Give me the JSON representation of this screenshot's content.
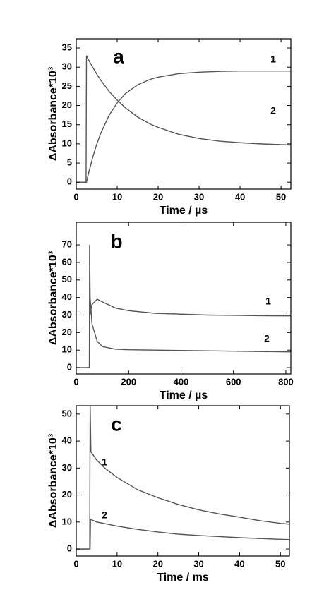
{
  "chart_data": [
    {
      "type": "line",
      "panel_label": "a",
      "xlabel": "Time / µs",
      "ylabel": "ΔAbsorbance*10³",
      "xlim": [
        0,
        52.4
      ],
      "ylim": [
        -1.8,
        37.4
      ],
      "xticks": [
        0,
        10,
        20,
        30,
        40,
        50
      ],
      "yticks": [
        0,
        5,
        10,
        15,
        20,
        25,
        30,
        35
      ],
      "series": [
        {
          "name": "1",
          "color": "#555555",
          "x": [
            0,
            1,
            2,
            2.5,
            3,
            4,
            5,
            6,
            8,
            10,
            12,
            15,
            18,
            20,
            25,
            30,
            35,
            40,
            45,
            50,
            52.4
          ],
          "values": [
            0,
            0,
            0,
            0,
            2.3,
            6.4,
            9.9,
            12.8,
            17.4,
            20.7,
            23.1,
            25.4,
            26.8,
            27.4,
            28.3,
            28.7,
            28.9,
            29,
            29,
            29,
            29
          ]
        },
        {
          "name": "2",
          "color": "#555555",
          "x": [
            0,
            1,
            2,
            2.4,
            2.5,
            3,
            4,
            5,
            6,
            8,
            10,
            12,
            15,
            18,
            20,
            25,
            30,
            35,
            40,
            45,
            50,
            52.4
          ],
          "values": [
            0,
            0,
            0,
            0,
            33,
            31.9,
            30,
            28.2,
            26.6,
            23.7,
            21.4,
            19.4,
            17,
            15.2,
            14.3,
            12.5,
            11.4,
            10.7,
            10.3,
            10,
            9.8,
            9.7
          ]
        }
      ]
    },
    {
      "type": "line",
      "panel_label": "b",
      "xlabel": "Time / µs",
      "ylabel": "ΔAbsorbance*10³",
      "xlim": [
        0,
        819
      ],
      "ylim": [
        -3.6,
        82.9
      ],
      "xticks": [
        0,
        200,
        400,
        600,
        800
      ],
      "yticks": [
        0,
        10,
        20,
        30,
        40,
        50,
        60,
        70
      ],
      "series": [
        {
          "name": "1",
          "color": "#555555",
          "x": [
            0,
            40,
            50,
            52,
            60,
            80,
            100,
            150,
            200,
            300,
            400,
            500,
            600,
            700,
            800,
            819
          ],
          "values": [
            0,
            0,
            0,
            30,
            36,
            39,
            37.5,
            34,
            32.5,
            31,
            30.5,
            30,
            29.8,
            29.6,
            29.5,
            29.5
          ]
        },
        {
          "name": "2",
          "color": "#555555",
          "x": [
            0,
            40,
            50,
            51,
            53,
            60,
            80,
            100,
            150,
            200,
            300,
            400,
            600,
            800,
            819
          ],
          "values": [
            0,
            0,
            0,
            70,
            40,
            25,
            15,
            12,
            10.5,
            10.2,
            10,
            9.8,
            9.4,
            9,
            9
          ]
        }
      ]
    },
    {
      "type": "line",
      "panel_label": "c",
      "xlabel": "Time / ms",
      "ylabel": "ΔAbsorbance*10³",
      "xlim": [
        0,
        52.2
      ],
      "ylim": [
        -2.6,
        53.1
      ],
      "xticks": [
        0,
        10,
        20,
        30,
        40,
        50
      ],
      "yticks": [
        0,
        10,
        20,
        30,
        40,
        50
      ],
      "series": [
        {
          "name": "1",
          "color": "#555555",
          "x": [
            0,
            3,
            3.3,
            3.4,
            3.6,
            5,
            7,
            10,
            15,
            20,
            25,
            30,
            35,
            40,
            45,
            50,
            52.2
          ],
          "values": [
            0,
            0,
            0,
            54,
            36,
            33,
            30,
            26.5,
            22,
            19,
            16.5,
            14.5,
            13,
            11.8,
            10.5,
            9.5,
            9.2
          ]
        },
        {
          "name": "2",
          "color": "#555555",
          "x": [
            0,
            3,
            3.4,
            3.5,
            5,
            10,
            15,
            20,
            25,
            30,
            35,
            40,
            45,
            50,
            52.2
          ],
          "values": [
            0,
            0,
            0,
            11,
            10,
            8.5,
            7.3,
            6.3,
            5.5,
            5,
            4.6,
            4.2,
            3.9,
            3.6,
            3.5
          ]
        }
      ]
    }
  ]
}
